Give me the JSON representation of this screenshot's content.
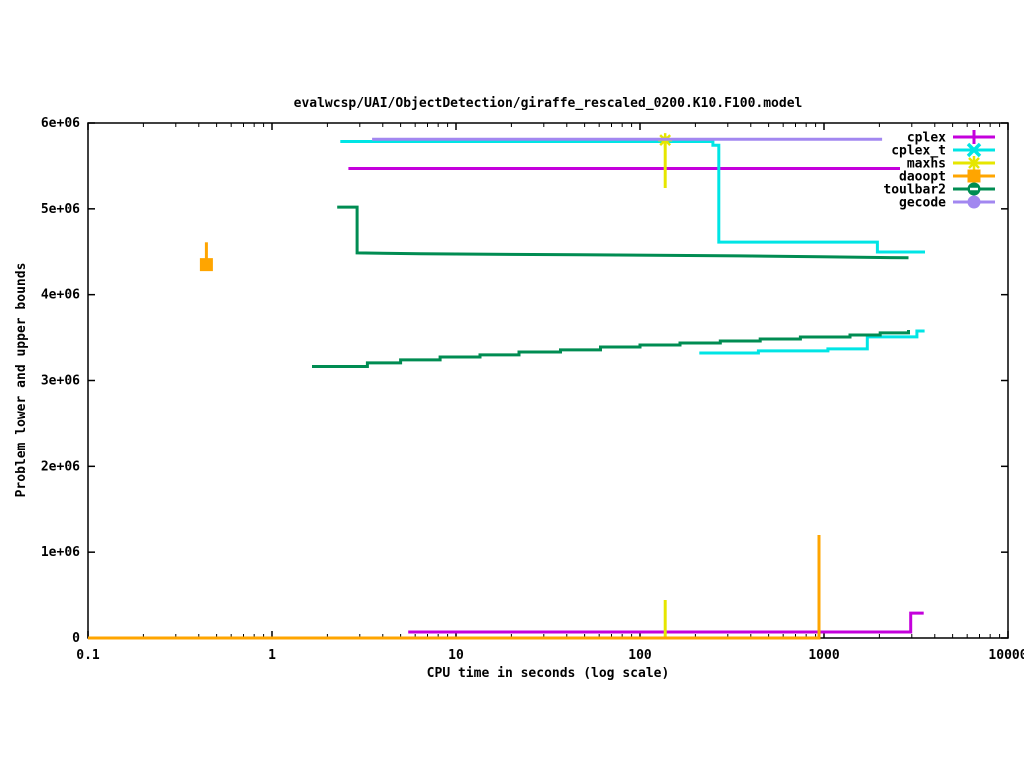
{
  "chart_data": {
    "type": "line",
    "title": "evalwcsp/UAI/ObjectDetection/giraffe_rescaled_0200.K10.F100.model",
    "xlabel": "CPU time in seconds (log scale)",
    "ylabel": "Problem lower and upper bounds",
    "x_scale": "log",
    "xlim": [
      0.1,
      10000
    ],
    "ylim": [
      0,
      6000000
    ],
    "grid": false,
    "legend_position": "top-right-inside",
    "x_ticks": [
      [
        0.1,
        "0.1"
      ],
      [
        1,
        "1"
      ],
      [
        10,
        "10"
      ],
      [
        100,
        "100"
      ],
      [
        1000,
        "1000"
      ],
      [
        10000,
        "10000"
      ]
    ],
    "y_ticks": [
      [
        0,
        "0"
      ],
      [
        1000000,
        "1e+06"
      ],
      [
        2000000,
        "2e+06"
      ],
      [
        3000000,
        "3e+06"
      ],
      [
        4000000,
        "4e+06"
      ],
      [
        5000000,
        "5e+06"
      ],
      [
        6000000,
        "6e+06"
      ]
    ],
    "series": [
      {
        "name": "cplex",
        "color": "#c400dc",
        "marker": "plus",
        "segments": [
          {
            "points": [
              [
                2.6,
                5470000
              ],
              [
                2590,
                5470000
              ]
            ]
          },
          {
            "points": [
              [
                5.5,
                70000
              ],
              [
                2960,
                70000
              ],
              [
                2960,
                290000
              ],
              [
                3480,
                290000
              ]
            ]
          }
        ]
      },
      {
        "name": "cplex_t",
        "color": "#00e5e5",
        "marker": "cross",
        "segments": [
          {
            "points": [
              [
                2.35,
                5785000
              ],
              [
                249,
                5785000
              ],
              [
                249,
                5740000
              ],
              [
                268,
                5740000
              ],
              [
                268,
                4613000
              ],
              [
                1950,
                4613000
              ],
              [
                1950,
                4497000
              ],
              [
                3540,
                4497000
              ]
            ]
          },
          {
            "points": [
              [
                210,
                3320000
              ],
              [
                430,
                3320000
              ],
              [
                440,
                3345000
              ],
              [
                950,
                3345000
              ],
              [
                1050,
                3368000
              ],
              [
                1720,
                3368000
              ],
              [
                1720,
                3508000
              ],
              [
                3200,
                3508000
              ],
              [
                3200,
                3577000
              ],
              [
                3520,
                3577000
              ]
            ],
            "step": true
          }
        ]
      },
      {
        "name": "maxhs",
        "color": "#e6e600",
        "marker": "star",
        "segments": [
          {
            "points": [
              [
                137,
                5243000
              ],
              [
                137,
                5849000
              ]
            ]
          },
          {
            "points": [
              [
                137,
                0
              ],
              [
                137,
                443000
              ]
            ]
          }
        ],
        "marker_points": [
          [
            137,
            5800000
          ]
        ]
      },
      {
        "name": "daoopt",
        "color": "#ffa500",
        "marker": "square",
        "segments": [
          {
            "points": [
              [
                0.1,
                0
              ],
              [
                939,
                0
              ],
              [
                939,
                1200000
              ]
            ]
          },
          {
            "points": [
              [
                0.44,
                4350000
              ],
              [
                0.44,
                4610000
              ]
            ]
          }
        ],
        "marker_points": [
          [
            0.44,
            4350000
          ]
        ]
      },
      {
        "name": "toulbar2",
        "color": "#008c52",
        "marker": "circle-dash",
        "segments": [
          {
            "points": [
              [
                2.26,
                5020000
              ],
              [
                2.9,
                5020000
              ],
              [
                2.9,
                4487000
              ],
              [
                6.4,
                4476000
              ],
              [
                47,
                4464000
              ],
              [
                350,
                4452000
              ],
              [
                955,
                4441000
              ],
              [
                2880,
                4429000
              ]
            ]
          },
          {
            "points": [
              [
                1.65,
                3163000
              ],
              [
                3.2,
                3163000
              ],
              [
                3.3,
                3205000
              ],
              [
                5,
                3240000
              ],
              [
                8.2,
                3274000
              ],
              [
                13.5,
                3298000
              ],
              [
                22,
                3332000
              ],
              [
                37,
                3356000
              ],
              [
                61,
                3390000
              ],
              [
                100,
                3414000
              ],
              [
                165,
                3437000
              ],
              [
                273,
                3460000
              ],
              [
                450,
                3484000
              ],
              [
                744,
                3507000
              ],
              [
                1385,
                3530000
              ],
              [
                2020,
                3554000
              ],
              [
                2880,
                3588000
              ]
            ],
            "step": true
          }
        ]
      },
      {
        "name": "gecode",
        "color": "#a287f0",
        "marker": "circle",
        "segments": [
          {
            "points": [
              [
                3.5,
                5810000
              ],
              [
                2070,
                5810000
              ]
            ]
          }
        ]
      }
    ]
  }
}
